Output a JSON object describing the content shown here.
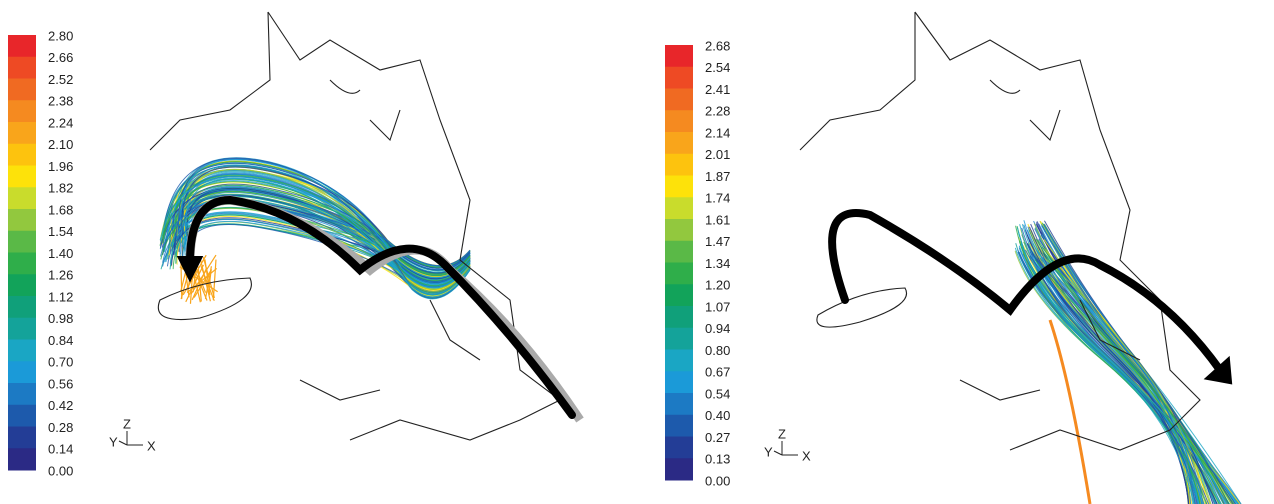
{
  "panels": [
    {
      "colorbar": {
        "labels": [
          "2.80",
          "2.66",
          "2.52",
          "2.38",
          "2.24",
          "2.10",
          "1.96",
          "1.82",
          "1.68",
          "1.54",
          "1.40",
          "1.26",
          "1.12",
          "0.98",
          "0.84",
          "0.70",
          "0.56",
          "0.42",
          "0.28",
          "0.14",
          "0.00"
        ]
      },
      "axes": {
        "z": "Z",
        "y": "Y",
        "x": "X"
      }
    },
    {
      "colorbar": {
        "labels": [
          "2.68",
          "2.54",
          "2.41",
          "2.28",
          "2.14",
          "2.01",
          "1.87",
          "1.74",
          "1.61",
          "1.47",
          "1.34",
          "1.20",
          "1.07",
          "0.94",
          "0.80",
          "0.67",
          "0.54",
          "0.40",
          "0.27",
          "0.13",
          "0.00"
        ]
      },
      "axes": {
        "z": "Z",
        "y": "Y",
        "x": "X"
      }
    }
  ]
}
